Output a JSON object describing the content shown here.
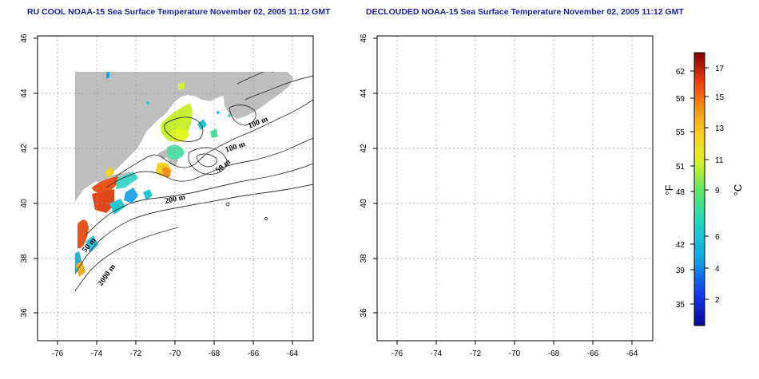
{
  "titles": {
    "left": "RU COOL NOAA-15 Sea Surface Temperature November 02, 2005 11:12 GMT",
    "right": "DECLOUDED NOAA-15 Sea Surface Temperature November 02, 2005 11:12 GMT"
  },
  "axes": {
    "lon_ticks": [
      "-76",
      "-74",
      "-72",
      "-70",
      "-68",
      "-66",
      "-64"
    ],
    "lat_ticks": [
      "46",
      "44",
      "42",
      "40",
      "38",
      "36"
    ]
  },
  "contour_labels": [
    "100 m",
    "100 m",
    "50 m",
    "200 m",
    "50 m",
    "2000 m"
  ],
  "colorbar": {
    "fahrenheit_unit": "°F",
    "celsius_unit": "°C",
    "fahrenheit_ticks": [
      "62",
      "59",
      "55",
      "51",
      "48",
      "42",
      "39",
      "35"
    ],
    "celsius_ticks": [
      "17",
      "15",
      "13",
      "11",
      "9",
      "6",
      "4",
      "2"
    ]
  },
  "colors": {
    "land": "#bebebe",
    "title": "#1a1aa8",
    "warm": "#e8541e",
    "mid": "#d8f040",
    "cool": "#20c8d0",
    "cold": "#1838d8"
  }
}
